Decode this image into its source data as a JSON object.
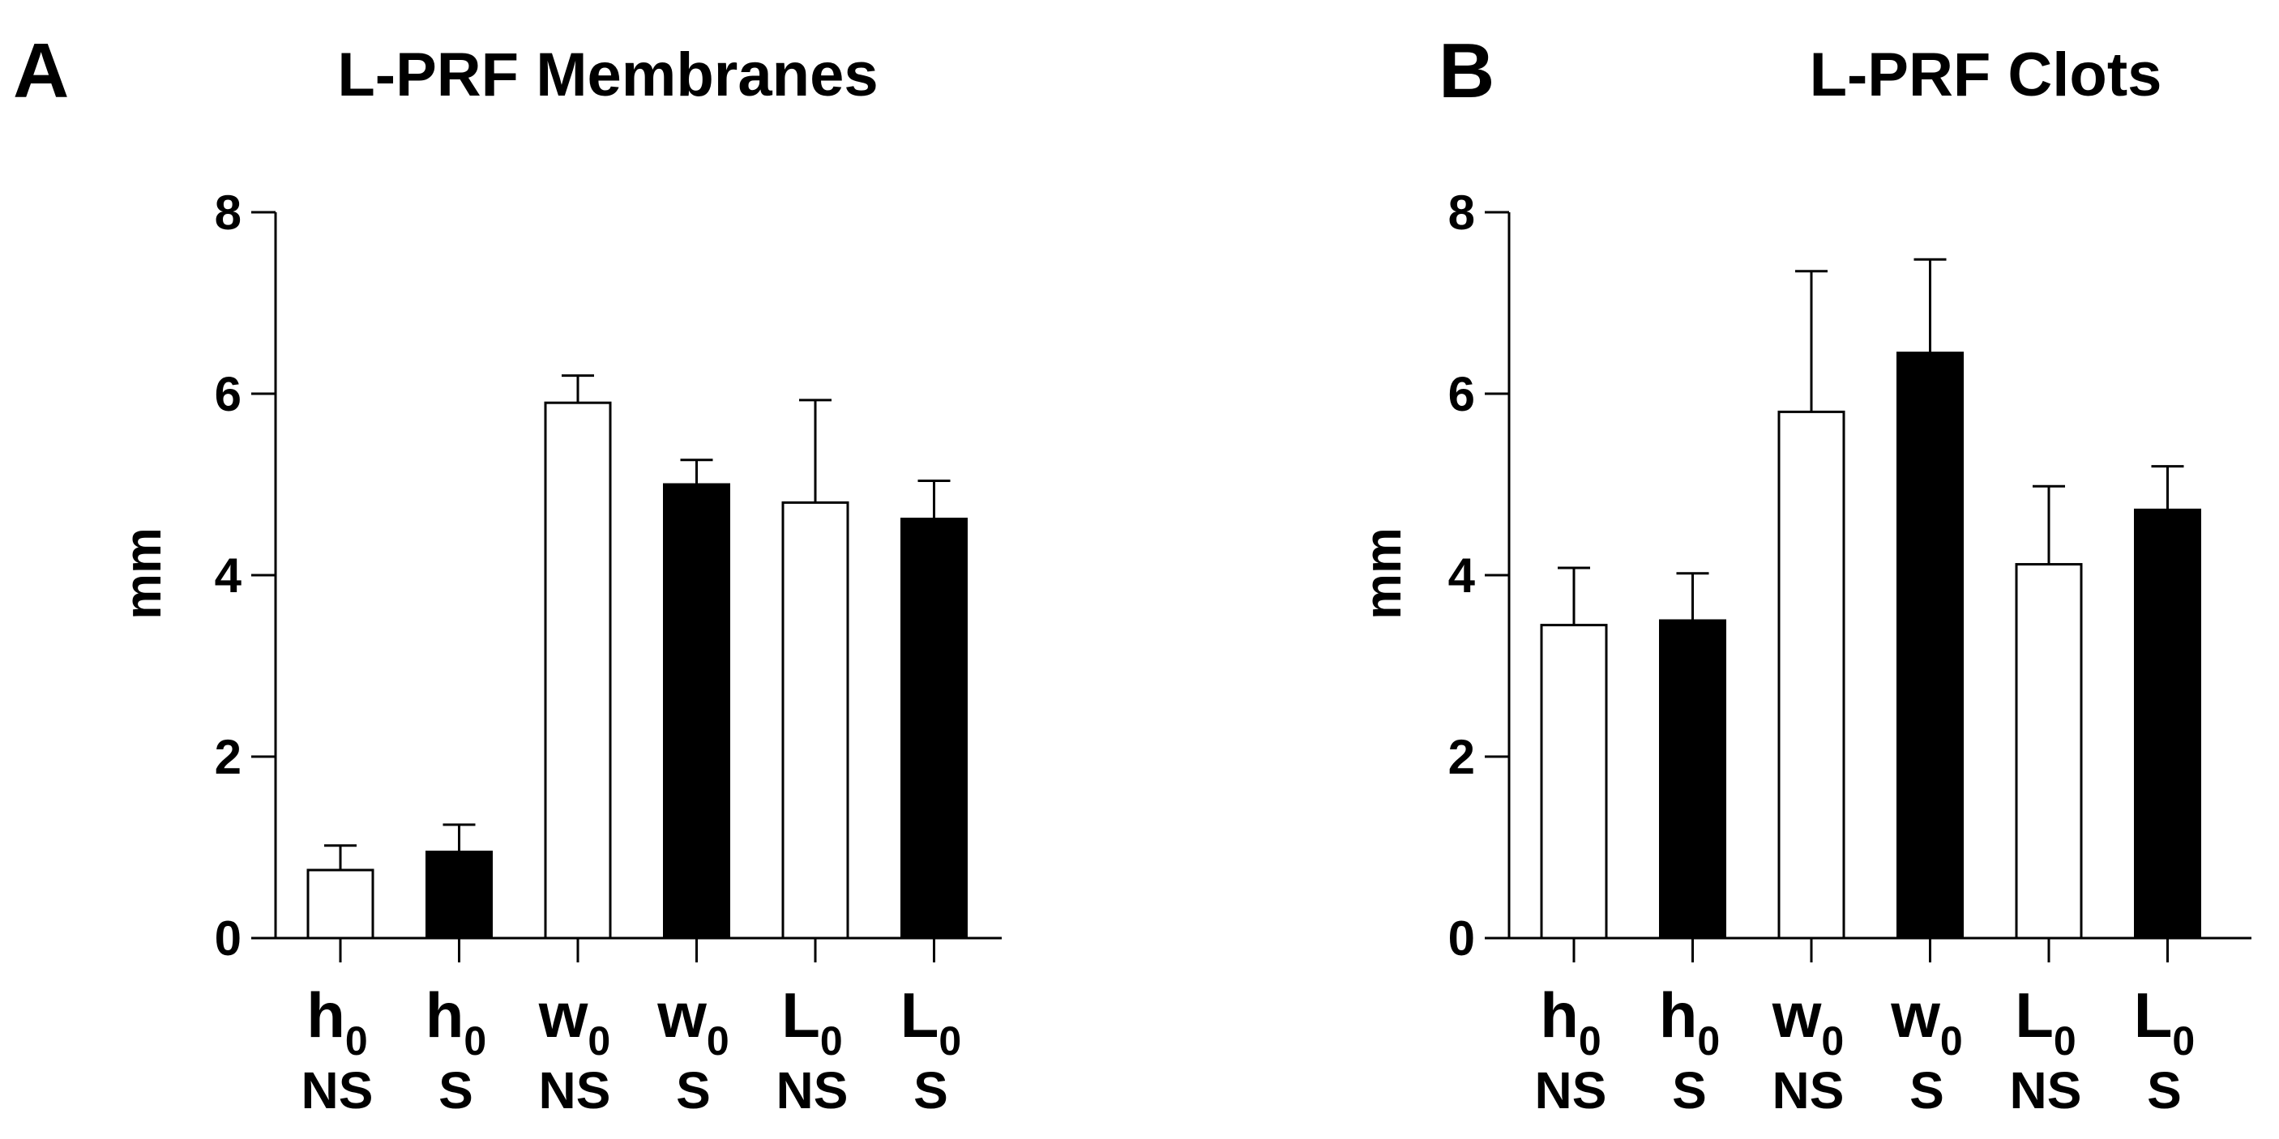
{
  "chart_data": [
    {
      "panel_label": "A",
      "type": "bar",
      "title": "L-PRF Membranes",
      "ylabel": "mm",
      "xlabel": "",
      "ylim": [
        0,
        8
      ],
      "yticks": [
        "0",
        "2",
        "4",
        "6",
        "8"
      ],
      "categories": [
        {
          "main": "h",
          "sub": "0",
          "group": "NS"
        },
        {
          "main": "h",
          "sub": "0",
          "group": "S"
        },
        {
          "main": "w",
          "sub": "0",
          "group": "NS"
        },
        {
          "main": "w",
          "sub": "0",
          "group": "S"
        },
        {
          "main": "L",
          "sub": "0",
          "group": "NS"
        },
        {
          "main": "L",
          "sub": "0",
          "group": "S"
        }
      ],
      "values": [
        0.75,
        0.95,
        5.9,
        5.0,
        4.8,
        4.62
      ],
      "errors": [
        0.27,
        0.3,
        0.3,
        0.27,
        1.13,
        0.42
      ],
      "fill": [
        "#ffffff",
        "#000000",
        "#ffffff",
        "#000000",
        "#ffffff",
        "#000000"
      ],
      "grid": false
    },
    {
      "panel_label": "B",
      "type": "bar",
      "title": "L-PRF Clots",
      "ylabel": "mm",
      "xlabel": "",
      "ylim": [
        0,
        8
      ],
      "yticks": [
        "0",
        "2",
        "4",
        "6",
        "8"
      ],
      "categories": [
        {
          "main": "h",
          "sub": "0",
          "group": "NS"
        },
        {
          "main": "h",
          "sub": "0",
          "group": "S"
        },
        {
          "main": "w",
          "sub": "0",
          "group": "NS"
        },
        {
          "main": "w",
          "sub": "0",
          "group": "S"
        },
        {
          "main": "L",
          "sub": "0",
          "group": "NS"
        },
        {
          "main": "L",
          "sub": "0",
          "group": "S"
        }
      ],
      "values": [
        3.45,
        3.5,
        5.8,
        6.45,
        4.12,
        4.72
      ],
      "errors": [
        0.63,
        0.52,
        1.55,
        1.03,
        0.86,
        0.48
      ],
      "fill": [
        "#ffffff",
        "#000000",
        "#ffffff",
        "#000000",
        "#ffffff",
        "#000000"
      ],
      "grid": false
    }
  ]
}
